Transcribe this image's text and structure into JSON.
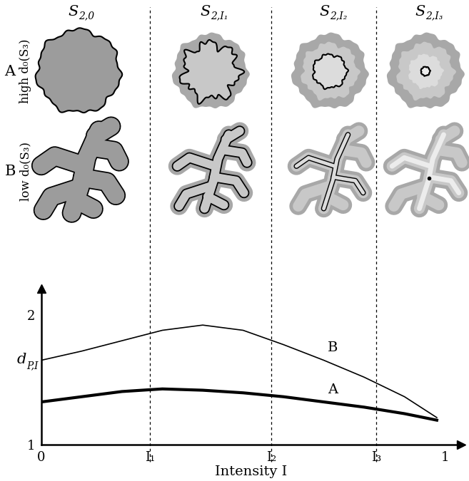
{
  "panels": {
    "columns": [
      {
        "text": "S",
        "sub": "2,0"
      },
      {
        "text": "S",
        "sub": "2,I₁"
      },
      {
        "text": "S",
        "sub": "2,I₂"
      },
      {
        "text": "S",
        "sub": "2,I₃"
      }
    ],
    "rows": [
      {
        "letter": "A",
        "label": "high d₀(S₃)"
      },
      {
        "letter": "B",
        "label": "low d₀(S₃)"
      }
    ]
  },
  "chart_data": {
    "type": "line",
    "xlabel": "Intensity I",
    "ylabel": {
      "text": "d",
      "sub": "P,I"
    },
    "series": [
      {
        "name": "A",
        "color": "#000000",
        "x": [
          0,
          0.1,
          0.2,
          0.3,
          0.4,
          0.5,
          0.6,
          0.7,
          0.8,
          0.9,
          0.98
        ],
        "values": [
          1.33,
          1.37,
          1.41,
          1.43,
          1.42,
          1.4,
          1.37,
          1.33,
          1.29,
          1.24,
          1.19
        ]
      },
      {
        "name": "B",
        "color": "#000000",
        "x": [
          0,
          0.1,
          0.2,
          0.3,
          0.4,
          0.5,
          0.6,
          0.7,
          0.8,
          0.9,
          0.98
        ],
        "values": [
          1.65,
          1.72,
          1.8,
          1.88,
          1.92,
          1.88,
          1.77,
          1.65,
          1.52,
          1.37,
          1.21
        ]
      }
    ],
    "xlim": [
      0,
      1.04
    ],
    "ylim": [
      1,
      2.2
    ],
    "xticks": [
      0,
      {
        "value": 0.27,
        "label": "I₁"
      },
      {
        "value": 0.57,
        "label": "I₂"
      },
      {
        "value": 0.83,
        "label": "I₃"
      },
      1
    ],
    "yticks": [
      1,
      2
    ]
  }
}
